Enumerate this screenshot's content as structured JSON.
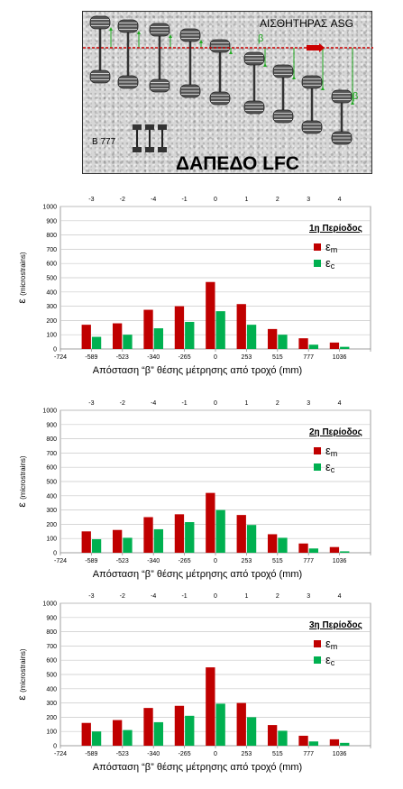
{
  "diagram": {
    "sensor_label": "ΑΙΣΘΗΤΗΡΑΣ ASG",
    "aircraft_label": "B 777",
    "floor_label": "ΔΑΠΕΔΟ LFC",
    "beta_label": "β",
    "colors": {
      "sensor_line": "#cc0000",
      "arrow": "#22aa22"
    }
  },
  "chart_data": [
    {
      "type": "bar",
      "title": "1η Περίοδος",
      "ylabel": "ε",
      "ylabel_unit": "(microstrains)",
      "xlabel": "Απόσταση “β” θέσης μέτρησης από τροχό (mm)",
      "categories": [
        "-589",
        "-523",
        "-340",
        "-265",
        "0",
        "253",
        "515",
        "777",
        "1036"
      ],
      "x_left_label": "-724",
      "top_categories": [
        "-3",
        "-2",
        "-4",
        "-1",
        "0",
        "1",
        "2",
        "3",
        "4"
      ],
      "ylim": [
        0,
        1000
      ],
      "yticks": [
        "0",
        "100",
        "200",
        "300",
        "400",
        "500",
        "600",
        "700",
        "800",
        "900",
        "1000"
      ],
      "grid": true,
      "legend": "top-right",
      "series": [
        {
          "name": "εm",
          "symbol": "ε",
          "sub": "m",
          "color": "#c00000",
          "values": [
            170,
            180,
            275,
            300,
            470,
            315,
            140,
            75,
            45
          ]
        },
        {
          "name": "εc",
          "symbol": "ε",
          "sub": "c",
          "color": "#00b050",
          "values": [
            85,
            100,
            145,
            190,
            265,
            170,
            100,
            30,
            15
          ]
        }
      ]
    },
    {
      "type": "bar",
      "title": "2η Περίοδος",
      "ylabel": "ε",
      "ylabel_unit": "(microstrains)",
      "xlabel": "Απόσταση “β” θέσης μέτρησης από τροχό (mm)",
      "categories": [
        "-589",
        "-523",
        "-340",
        "-265",
        "0",
        "253",
        "515",
        "777",
        "1036"
      ],
      "x_left_label": "-724",
      "top_categories": [
        "-3",
        "-2",
        "-4",
        "-1",
        "0",
        "1",
        "2",
        "3",
        "4"
      ],
      "ylim": [
        0,
        1000
      ],
      "yticks": [
        "0",
        "100",
        "200",
        "300",
        "400",
        "500",
        "600",
        "700",
        "800",
        "900",
        "1000"
      ],
      "grid": true,
      "legend": "top-right",
      "series": [
        {
          "name": "εm",
          "symbol": "ε",
          "sub": "m",
          "color": "#c00000",
          "values": [
            150,
            160,
            250,
            270,
            420,
            265,
            130,
            65,
            40
          ]
        },
        {
          "name": "εc",
          "symbol": "ε",
          "sub": "c",
          "color": "#00b050",
          "values": [
            95,
            105,
            165,
            215,
            300,
            195,
            105,
            30,
            10
          ]
        }
      ]
    },
    {
      "type": "bar",
      "title": "3η Περίοδος",
      "ylabel": "ε",
      "ylabel_unit": "(microstrains)",
      "xlabel": "Απόσταση “β” θέσης μέτρησης από τροχό (mm)",
      "categories": [
        "-589",
        "-523",
        "-340",
        "-265",
        "0",
        "253",
        "515",
        "777",
        "1036"
      ],
      "x_left_label": "-724",
      "top_categories": [
        "-3",
        "-2",
        "-4",
        "-1",
        "0",
        "1",
        "2",
        "3",
        "4"
      ],
      "ylim": [
        0,
        1000
      ],
      "yticks": [
        "0",
        "100",
        "200",
        "300",
        "400",
        "500",
        "600",
        "700",
        "800",
        "900",
        "1000"
      ],
      "grid": true,
      "legend": "top-right",
      "series": [
        {
          "name": "εm",
          "symbol": "ε",
          "sub": "m",
          "color": "#c00000",
          "values": [
            160,
            180,
            265,
            280,
            550,
            300,
            145,
            70,
            45
          ]
        },
        {
          "name": "εc",
          "symbol": "ε",
          "sub": "c",
          "color": "#00b050",
          "values": [
            100,
            110,
            165,
            210,
            295,
            200,
            105,
            30,
            20
          ]
        }
      ]
    }
  ]
}
